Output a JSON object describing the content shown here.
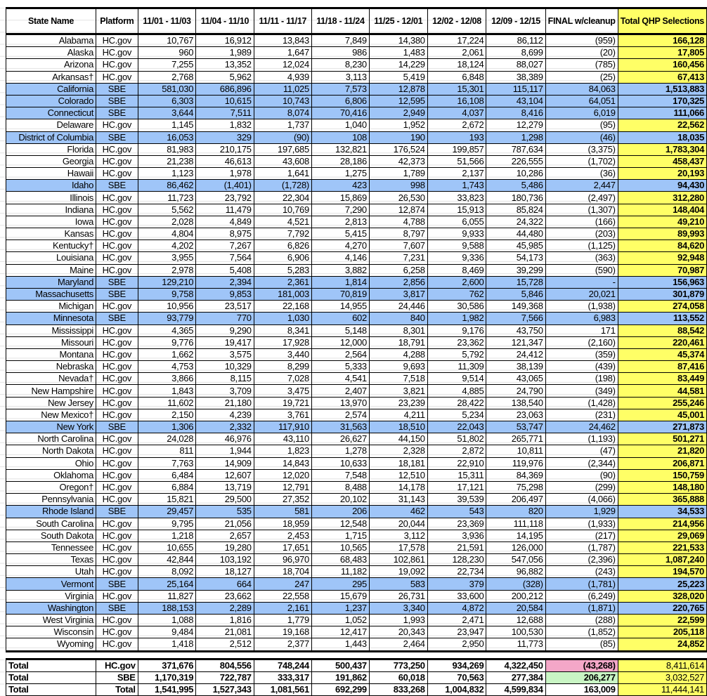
{
  "header": [
    "State Name",
    "Platform",
    "11/01 - 11/03",
    "11/04 - 11/10",
    "11/11 - 11/17",
    "11/18 - 11/24",
    "11/25 - 12/01",
    "12/02 - 12/08",
    "12/09 - 12/15",
    "FINAL w/cleanup",
    "Total QHP Selections"
  ],
  "colors": {
    "sbe_row": "#9fc5f8",
    "total_highlight": "#ffff66",
    "hc_final_total": "#f4a7c8",
    "sbe_final_total": "#c9f5c4"
  },
  "rows": [
    [
      "Alabama",
      "HC.gov",
      "10,767",
      "16,912",
      "13,843",
      "7,849",
      "14,380",
      "17,224",
      "86,112",
      "(959)",
      "166,128"
    ],
    [
      "Alaska",
      "HC.gov",
      "960",
      "1,989",
      "1,647",
      "986",
      "1,483",
      "2,061",
      "8,699",
      "(20)",
      "17,805"
    ],
    [
      "Arizona",
      "HC.gov",
      "7,255",
      "13,352",
      "12,024",
      "8,230",
      "14,229",
      "18,124",
      "88,027",
      "(785)",
      "160,456"
    ],
    [
      "Arkansas†",
      "HC.gov",
      "2,768",
      "5,962",
      "4,939",
      "3,113",
      "5,419",
      "6,848",
      "38,389",
      "(25)",
      "67,413"
    ],
    [
      "California",
      "SBE",
      "581,030",
      "686,896",
      "11,025",
      "7,573",
      "12,878",
      "15,301",
      "115,117",
      "84,063",
      "1,513,883"
    ],
    [
      "Colorado",
      "SBE",
      "6,303",
      "10,615",
      "10,743",
      "6,806",
      "12,595",
      "16,108",
      "43,104",
      "64,051",
      "170,325"
    ],
    [
      "Connecticut",
      "SBE",
      "3,644",
      "7,511",
      "8,074",
      "70,416",
      "2,949",
      "4,037",
      "8,416",
      "6,019",
      "111,066"
    ],
    [
      "Delaware",
      "HC.gov",
      "1,145",
      "1,832",
      "1,737",
      "1,040",
      "1,952",
      "2,672",
      "12,279",
      "(95)",
      "22,562"
    ],
    [
      "District of Columbia",
      "SBE",
      "16,053",
      "329",
      "(90)",
      "108",
      "190",
      "193",
      "1,298",
      "(46)",
      "18,035"
    ],
    [
      "Florida",
      "HC.gov",
      "81,983",
      "210,175",
      "197,685",
      "132,821",
      "176,524",
      "199,857",
      "787,634",
      "(3,375)",
      "1,783,304"
    ],
    [
      "Georgia",
      "HC.gov",
      "21,238",
      "46,613",
      "43,608",
      "28,186",
      "42,373",
      "51,566",
      "226,555",
      "(1,702)",
      "458,437"
    ],
    [
      "Hawaii",
      "HC.gov",
      "1,123",
      "1,978",
      "1,641",
      "1,275",
      "1,789",
      "2,137",
      "10,286",
      "(36)",
      "20,193"
    ],
    [
      "Idaho",
      "SBE",
      "86,462",
      "(1,401)",
      "(1,728)",
      "423",
      "998",
      "1,743",
      "5,486",
      "2,447",
      "94,430"
    ],
    [
      "Illinois",
      "HC.gov",
      "11,723",
      "23,792",
      "22,304",
      "15,869",
      "26,530",
      "33,823",
      "180,736",
      "(2,497)",
      "312,280"
    ],
    [
      "Indiana",
      "HC.gov",
      "5,562",
      "11,479",
      "10,769",
      "7,290",
      "12,874",
      "15,913",
      "85,824",
      "(1,307)",
      "148,404"
    ],
    [
      "Iowa",
      "HC.gov",
      "2,028",
      "4,849",
      "4,521",
      "2,813",
      "4,788",
      "6,055",
      "24,322",
      "(166)",
      "49,210"
    ],
    [
      "Kansas",
      "HC.gov",
      "4,804",
      "8,975",
      "7,792",
      "5,415",
      "8,797",
      "9,933",
      "44,480",
      "(203)",
      "89,993"
    ],
    [
      "Kentucky†",
      "HC.gov",
      "4,202",
      "7,267",
      "6,826",
      "4,270",
      "7,607",
      "9,588",
      "45,985",
      "(1,125)",
      "84,620"
    ],
    [
      "Louisiana",
      "HC.gov",
      "3,955",
      "7,564",
      "6,906",
      "4,146",
      "7,231",
      "9,336",
      "54,173",
      "(363)",
      "92,948"
    ],
    [
      "Maine",
      "HC.gov",
      "2,978",
      "5,408",
      "5,283",
      "3,882",
      "6,258",
      "8,469",
      "39,299",
      "(590)",
      "70,987"
    ],
    [
      "Maryland",
      "SBE",
      "129,210",
      "2,394",
      "2,361",
      "1,814",
      "2,856",
      "2,600",
      "15,728",
      "-",
      "156,963"
    ],
    [
      "Massachusetts",
      "SBE",
      "9,758",
      "9,853",
      "181,003",
      "70,819",
      "3,817",
      "762",
      "5,846",
      "20,021",
      "301,879"
    ],
    [
      "Michigan",
      "HC.gov",
      "10,956",
      "23,517",
      "22,168",
      "14,955",
      "24,446",
      "30,586",
      "149,368",
      "(1,938)",
      "274,058"
    ],
    [
      "Minnesota",
      "SBE",
      "93,779",
      "770",
      "1,030",
      "602",
      "840",
      "1,982",
      "7,566",
      "6,983",
      "113,552"
    ],
    [
      "Mississippi",
      "HC.gov",
      "4,365",
      "9,290",
      "8,341",
      "5,148",
      "8,301",
      "9,176",
      "43,750",
      "171",
      "88,542"
    ],
    [
      "Missouri",
      "HC.gov",
      "9,776",
      "19,417",
      "17,928",
      "12,000",
      "18,791",
      "23,362",
      "121,347",
      "(2,160)",
      "220,461"
    ],
    [
      "Montana",
      "HC.gov",
      "1,662",
      "3,575",
      "3,440",
      "2,564",
      "4,288",
      "5,792",
      "24,412",
      "(359)",
      "45,374"
    ],
    [
      "Nebraska",
      "HC.gov",
      "4,753",
      "10,329",
      "8,299",
      "5,333",
      "9,693",
      "11,309",
      "38,139",
      "(439)",
      "87,416"
    ],
    [
      "Nevada†",
      "HC.gov",
      "3,866",
      "8,115",
      "7,028",
      "4,541",
      "7,518",
      "9,514",
      "43,065",
      "(198)",
      "83,449"
    ],
    [
      "New Hampshire",
      "HC.gov",
      "1,843",
      "3,709",
      "3,475",
      "2,407",
      "3,821",
      "4,885",
      "24,790",
      "(349)",
      "44,581"
    ],
    [
      "New Jersey",
      "HC.gov",
      "11,602",
      "21,180",
      "19,721",
      "13,970",
      "23,239",
      "28,422",
      "138,540",
      "(1,428)",
      "255,246"
    ],
    [
      "New Mexico†",
      "HC.gov",
      "2,150",
      "4,239",
      "3,761",
      "2,574",
      "4,211",
      "5,234",
      "23,063",
      "(231)",
      "45,001"
    ],
    [
      "New York",
      "SBE",
      "1,306",
      "2,332",
      "117,910",
      "31,563",
      "18,510",
      "22,043",
      "53,747",
      "24,462",
      "271,873"
    ],
    [
      "North Carolina",
      "HC.gov",
      "24,028",
      "46,976",
      "43,110",
      "26,627",
      "44,150",
      "51,802",
      "265,771",
      "(1,193)",
      "501,271"
    ],
    [
      "North Dakota",
      "HC.gov",
      "811",
      "1,944",
      "1,823",
      "1,278",
      "2,328",
      "2,872",
      "10,811",
      "(47)",
      "21,820"
    ],
    [
      "Ohio",
      "HC.gov",
      "7,763",
      "14,909",
      "14,843",
      "10,633",
      "18,181",
      "22,910",
      "119,976",
      "(2,344)",
      "206,871"
    ],
    [
      "Oklahoma",
      "HC.gov",
      "6,484",
      "12,607",
      "12,020",
      "7,548",
      "12,510",
      "15,311",
      "84,369",
      "(90)",
      "150,759"
    ],
    [
      "Oregon†",
      "HC.gov",
      "6,884",
      "13,719",
      "12,791",
      "8,488",
      "14,178",
      "17,121",
      "75,298",
      "(299)",
      "148,180"
    ],
    [
      "Pennsylvania",
      "HC.gov",
      "15,821",
      "29,500",
      "27,352",
      "20,102",
      "31,143",
      "39,539",
      "206,497",
      "(4,066)",
      "365,888"
    ],
    [
      "Rhode Island",
      "SBE",
      "29,457",
      "535",
      "581",
      "206",
      "462",
      "543",
      "820",
      "1,929",
      "34,533"
    ],
    [
      "South Carolina",
      "HC.gov",
      "9,795",
      "21,056",
      "18,959",
      "12,548",
      "20,044",
      "23,369",
      "111,118",
      "(1,933)",
      "214,956"
    ],
    [
      "South Dakota",
      "HC.gov",
      "1,218",
      "2,657",
      "2,453",
      "1,715",
      "3,112",
      "3,936",
      "14,195",
      "(217)",
      "29,069"
    ],
    [
      "Tennessee",
      "HC.gov",
      "10,655",
      "19,280",
      "17,651",
      "10,565",
      "17,578",
      "21,591",
      "126,000",
      "(1,787)",
      "221,533"
    ],
    [
      "Texas",
      "HC.gov",
      "42,844",
      "103,192",
      "96,970",
      "68,483",
      "102,861",
      "128,230",
      "547,056",
      "(2,396)",
      "1,087,240"
    ],
    [
      "Utah",
      "HC.gov",
      "8,092",
      "18,127",
      "18,704",
      "11,182",
      "19,092",
      "22,734",
      "96,882",
      "(243)",
      "194,570"
    ],
    [
      "Vermont",
      "SBE",
      "25,164",
      "664",
      "247",
      "295",
      "583",
      "379",
      "(328)",
      "(1,781)",
      "25,223"
    ],
    [
      "Virginia",
      "HC.gov",
      "11,827",
      "23,662",
      "22,558",
      "15,679",
      "26,731",
      "33,600",
      "200,212",
      "(6,249)",
      "328,020"
    ],
    [
      "Washington",
      "SBE",
      "188,153",
      "2,289",
      "2,161",
      "1,237",
      "3,340",
      "4,872",
      "20,584",
      "(1,871)",
      "220,765"
    ],
    [
      "West Virginia",
      "HC.gov",
      "1,088",
      "1,816",
      "1,779",
      "1,052",
      "1,993",
      "2,471",
      "12,688",
      "(288)",
      "22,599"
    ],
    [
      "Wisconsin",
      "HC.gov",
      "9,484",
      "21,081",
      "19,168",
      "12,417",
      "20,343",
      "23,947",
      "100,530",
      "(1,852)",
      "205,118"
    ],
    [
      "Wyoming",
      "HC.gov",
      "1,418",
      "2,512",
      "2,377",
      "1,443",
      "2,464",
      "2,950",
      "11,773",
      "(85)",
      "24,852"
    ]
  ],
  "totals": [
    [
      "Total",
      "HC.gov",
      "371,676",
      "804,556",
      "748,244",
      "500,437",
      "773,250",
      "934,269",
      "4,322,450",
      "(43,268)",
      "8,411,614"
    ],
    [
      "Total",
      "SBE",
      "1,170,319",
      "722,787",
      "333,317",
      "191,862",
      "60,018",
      "70,563",
      "277,384",
      "206,277",
      "3,032,527"
    ],
    [
      "Total",
      "Total",
      "1,541,995",
      "1,527,343",
      "1,081,561",
      "692,299",
      "833,268",
      "1,004,832",
      "4,599,834",
      "163,009",
      "11,444,141"
    ]
  ]
}
